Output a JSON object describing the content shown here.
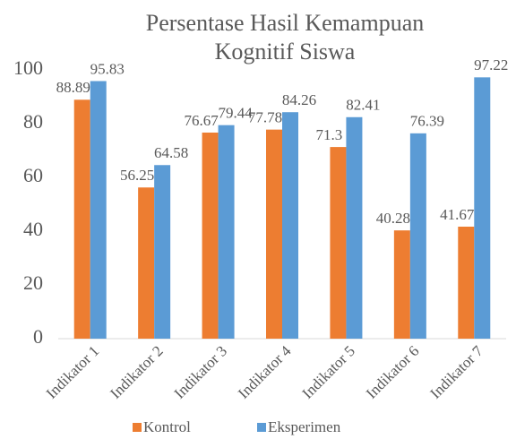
{
  "chart_data": {
    "type": "bar",
    "title": [
      "Persentase Hasil Kemampuan",
      "Kognitif Siswa"
    ],
    "categories": [
      "Indikator 1",
      "Indikator 2",
      "Indikator 3",
      "Indikator 4",
      "Indikator 5",
      "Indikator 6",
      "Indikator 7"
    ],
    "series": [
      {
        "name": "Kontrol",
        "color": "#ed7d31",
        "values": [
          88.89,
          56.25,
          76.67,
          77.78,
          71.3,
          40.28,
          41.67
        ]
      },
      {
        "name": "Eksperimen",
        "color": "#5b9bd5",
        "values": [
          95.83,
          64.58,
          79.44,
          84.26,
          82.41,
          76.39,
          97.22
        ]
      }
    ],
    "ylim": [
      0,
      100
    ],
    "yticks": [
      0,
      20,
      40,
      60,
      80,
      100
    ],
    "grid": false,
    "legend": "bottom"
  }
}
